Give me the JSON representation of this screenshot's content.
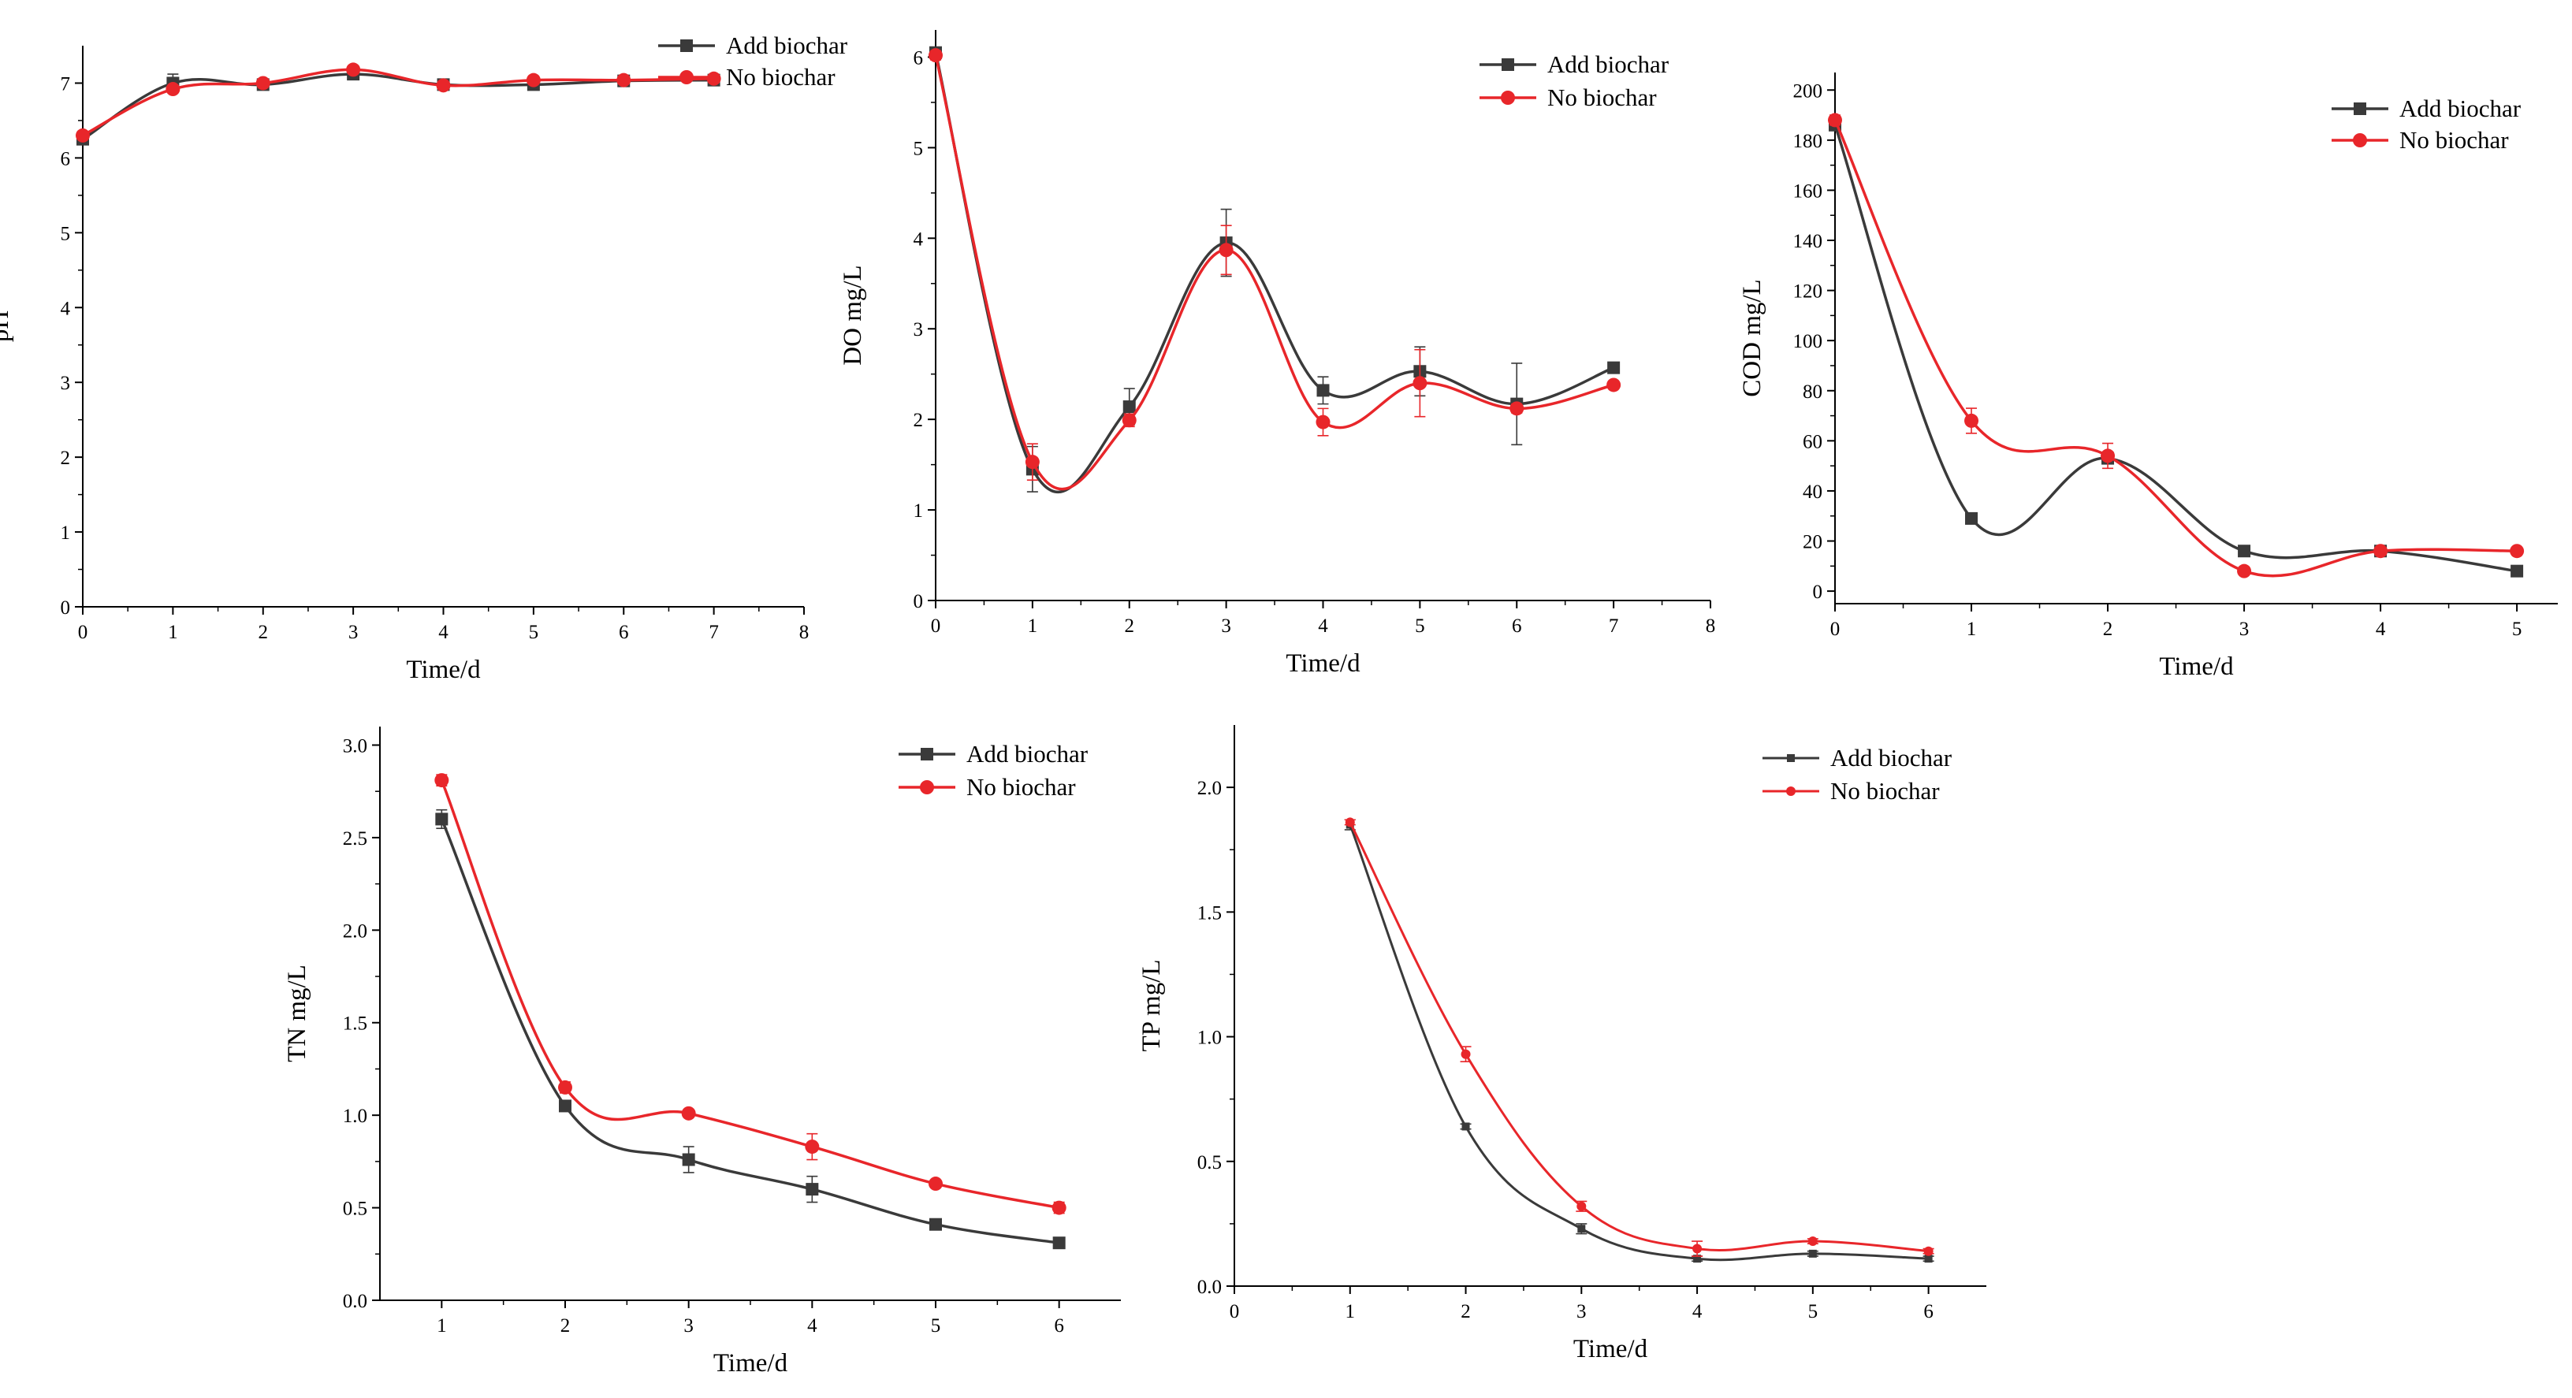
{
  "colors": {
    "add_biochar": "#3a3a3a",
    "no_biochar": "#e8262a",
    "axis": "#000000"
  },
  "chart_data": [
    {
      "id": "ph",
      "type": "line",
      "title": "",
      "xlabel": "Time/d",
      "ylabel": "pH",
      "xlim": [
        0,
        8
      ],
      "ylim": [
        0,
        7.5
      ],
      "xticks": [
        0,
        1,
        2,
        3,
        4,
        5,
        6,
        7,
        8
      ],
      "yticks": [
        0,
        1,
        2,
        3,
        4,
        5,
        6,
        7
      ],
      "ytick_labels": [
        "0",
        "1",
        "2",
        "3",
        "4",
        "5",
        "6",
        "7"
      ],
      "legend": "top-right",
      "series": [
        {
          "name": "Add biochar",
          "marker": "square",
          "x": [
            0,
            1,
            2,
            3,
            4,
            5,
            6,
            7
          ],
          "values": [
            6.25,
            7.0,
            6.98,
            7.12,
            6.98,
            6.98,
            7.03,
            7.04
          ],
          "errors": [
            0.05,
            0.12,
            0.05,
            0.05,
            0.04,
            0.04,
            0.04,
            0.04
          ]
        },
        {
          "name": "No biochar",
          "marker": "circle",
          "x": [
            0,
            1,
            2,
            3,
            4,
            5,
            6,
            7
          ],
          "values": [
            6.3,
            6.92,
            7.0,
            7.18,
            6.97,
            7.04,
            7.04,
            7.06
          ],
          "errors": [
            0.05,
            0.05,
            0.05,
            0.05,
            0.04,
            0.05,
            0.04,
            0.04
          ]
        }
      ]
    },
    {
      "id": "do",
      "type": "line",
      "title": "",
      "xlabel": "Time/d",
      "ylabel": "DO mg/L",
      "xlim": [
        0,
        8
      ],
      "ylim": [
        0,
        6.3
      ],
      "xticks": [
        0,
        1,
        2,
        3,
        4,
        5,
        6,
        7,
        8
      ],
      "yticks": [
        0,
        1,
        2,
        3,
        4,
        5,
        6
      ],
      "ytick_labels": [
        "0",
        "1",
        "2",
        "3",
        "4",
        "5",
        "6"
      ],
      "legend": "top-right",
      "series": [
        {
          "name": "Add biochar",
          "marker": "square",
          "x": [
            0,
            1,
            2,
            3,
            4,
            5,
            6,
            7
          ],
          "values": [
            6.05,
            1.45,
            2.14,
            3.95,
            2.32,
            2.53,
            2.17,
            2.57
          ],
          "errors": [
            0.05,
            0.25,
            0.2,
            0.37,
            0.15,
            0.27,
            0.45,
            0.05
          ]
        },
        {
          "name": "No biochar",
          "marker": "circle",
          "x": [
            0,
            1,
            2,
            3,
            4,
            5,
            6,
            7
          ],
          "values": [
            6.02,
            1.53,
            1.99,
            3.87,
            1.97,
            2.4,
            2.12,
            2.38
          ],
          "errors": [
            0.05,
            0.2,
            0.07,
            0.27,
            0.15,
            0.37,
            0.05,
            0.04
          ]
        }
      ]
    },
    {
      "id": "cod",
      "type": "line",
      "title": "",
      "xlabel": "Time/d",
      "ylabel": "COD mg/L",
      "xlim": [
        0,
        5.3
      ],
      "ylim": [
        -5,
        207
      ],
      "xticks": [
        0,
        1,
        2,
        3,
        4,
        5
      ],
      "yticks": [
        0,
        20,
        40,
        60,
        80,
        100,
        120,
        140,
        160,
        180,
        200
      ],
      "ytick_labels": [
        "0",
        "20",
        "40",
        "60",
        "80",
        "100",
        "120",
        "140",
        "160",
        "180",
        "200"
      ],
      "legend": "top-right",
      "series": [
        {
          "name": "Add biochar",
          "marker": "square",
          "x": [
            0,
            1,
            2,
            3,
            4,
            5
          ],
          "values": [
            186,
            29,
            53,
            16,
            16,
            8
          ],
          "errors": [
            1,
            1,
            2,
            1,
            1,
            1
          ]
        },
        {
          "name": "No biochar",
          "marker": "circle",
          "x": [
            0,
            1,
            2,
            3,
            4,
            5
          ],
          "values": [
            188,
            68,
            54,
            8,
            16,
            16
          ],
          "errors": [
            2,
            5,
            5,
            1,
            1,
            1
          ]
        }
      ]
    },
    {
      "id": "tn",
      "type": "line",
      "title": "",
      "xlabel": "Time/d",
      "ylabel": "TN mg/L",
      "xlim": [
        0.5,
        6.5
      ],
      "ylim": [
        0,
        3.1
      ],
      "xticks": [
        1,
        2,
        3,
        4,
        5,
        6
      ],
      "yticks": [
        0,
        0.5,
        1.0,
        1.5,
        2.0,
        2.5,
        3.0
      ],
      "ytick_labels": [
        "0.0",
        "0.5",
        "1.0",
        "1.5",
        "2.0",
        "2.5",
        "3.0"
      ],
      "legend": "top-right",
      "series": [
        {
          "name": "Add biochar",
          "marker": "square",
          "x": [
            1,
            2,
            3,
            4,
            5,
            6
          ],
          "values": [
            2.6,
            1.05,
            0.76,
            0.6,
            0.41,
            0.31
          ],
          "errors": [
            0.05,
            0.02,
            0.07,
            0.07,
            0.02,
            0.02
          ]
        },
        {
          "name": "No biochar",
          "marker": "circle",
          "x": [
            1,
            2,
            3,
            4,
            5,
            6
          ],
          "values": [
            2.81,
            1.15,
            1.01,
            0.83,
            0.63,
            0.5
          ],
          "errors": [
            0.03,
            0.03,
            0.02,
            0.07,
            0.02,
            0.03
          ]
        }
      ]
    },
    {
      "id": "tp",
      "type": "line",
      "title": "",
      "xlabel": "Time/d",
      "ylabel": "TP mg/L",
      "xlim": [
        0,
        6.5
      ],
      "ylim": [
        0,
        2.25
      ],
      "xticks": [
        0,
        1,
        2,
        3,
        4,
        5,
        6
      ],
      "yticks": [
        0,
        0.5,
        1.0,
        1.5,
        2.0
      ],
      "ytick_labels": [
        "0.0",
        "0.5",
        "1.0",
        "1.5",
        "2.0"
      ],
      "legend": "top-right",
      "series": [
        {
          "name": "Add biochar",
          "marker": "square",
          "x": [
            1,
            2,
            3,
            4,
            5,
            6
          ],
          "values": [
            1.85,
            0.64,
            0.23,
            0.11,
            0.13,
            0.11
          ],
          "errors": [
            0.02,
            0.01,
            0.02,
            0.01,
            0.01,
            0.01
          ]
        },
        {
          "name": "No biochar",
          "marker": "circle",
          "x": [
            1,
            2,
            3,
            4,
            5,
            6
          ],
          "values": [
            1.86,
            0.93,
            0.32,
            0.15,
            0.18,
            0.14
          ],
          "errors": [
            0.01,
            0.03,
            0.02,
            0.03,
            0.01,
            0.01
          ]
        }
      ]
    }
  ]
}
